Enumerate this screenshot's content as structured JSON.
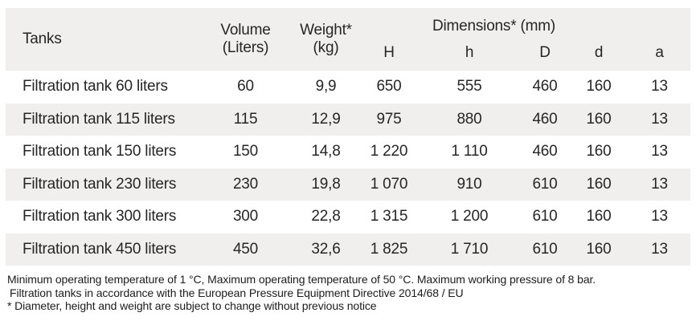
{
  "table": {
    "header": {
      "tanks": "Tanks",
      "volume_line1": "Volume",
      "volume_line2": "(Liters)",
      "weight_line1": "Weight*",
      "weight_line2": "(kg)",
      "dimensions_label": "Dimensions* (mm)",
      "dim_cols": {
        "H": "H",
        "h": "h",
        "D": "D",
        "d": "d",
        "a": "a"
      }
    },
    "rows": [
      {
        "name": "Filtration tank 60 liters",
        "volume": "60",
        "weight": "9,9",
        "H": "650",
        "h": "555",
        "D": "460",
        "d": "160",
        "a": "13"
      },
      {
        "name": "Filtration tank 115 liters",
        "volume": "115",
        "weight": "12,9",
        "H": "975",
        "h": "880",
        "D": "460",
        "d": "160",
        "a": "13"
      },
      {
        "name": "Filtration tank 150 liters",
        "volume": "150",
        "weight": "14,8",
        "H": "1 220",
        "h": "1 110",
        "D": "460",
        "d": "160",
        "a": "13"
      },
      {
        "name": "Filtration tank 230 liters",
        "volume": "230",
        "weight": "19,8",
        "H": "1 070",
        "h": "910",
        "D": "610",
        "d": "160",
        "a": "13"
      },
      {
        "name": "Filtration tank 300 liters",
        "volume": "300",
        "weight": "22,8",
        "H": "1 315",
        "h": "1 200",
        "D": "610",
        "d": "160",
        "a": "13"
      },
      {
        "name": "Filtration tank 450 liters",
        "volume": "450",
        "weight": "32,6",
        "H": "1 825",
        "h": "1 710",
        "D": "610",
        "d": "160",
        "a": "13"
      }
    ]
  },
  "footnotes": {
    "line1": "Minimum operating temperature of 1 °C, Maximum operating temperature of 50 °C. Maximum working pressure of 8 bar.",
    "line2": "Filtration tanks in accordance with the European Pressure Equipment Directive 2014/68 / EU",
    "line3": "* Diameter, height and weight are subject to change without previous notice"
  },
  "colors": {
    "band_gray": "#f0efed",
    "text": "#262626"
  }
}
